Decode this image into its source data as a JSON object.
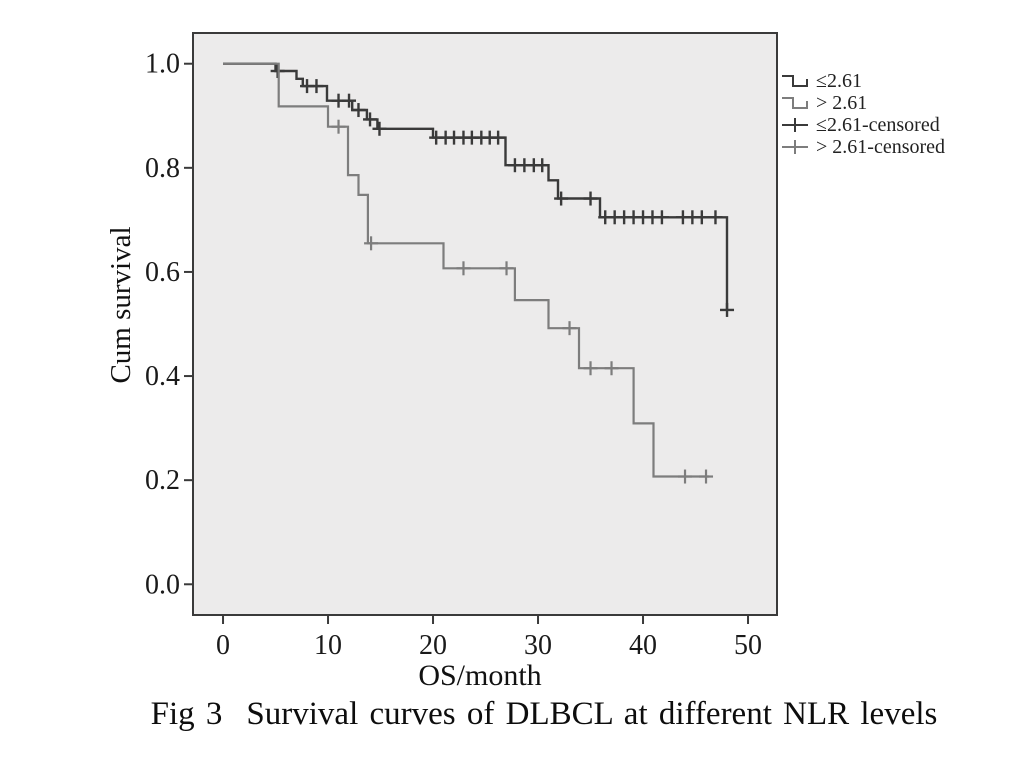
{
  "caption": {
    "prefix": "Fig 3",
    "text": "Survival curves of DLBCL at different NLR levels"
  },
  "legend": {
    "items": [
      {
        "label": "≤2.61",
        "symbol": "step-line-icon",
        "color": "#3a3a3a"
      },
      {
        "label": "> 2.61",
        "symbol": "step-line-icon",
        "color": "#7d7d7d"
      },
      {
        "label": "≤2.61-censored",
        "symbol": "censored-plus-icon",
        "color": "#3a3a3a"
      },
      {
        "label": "> 2.61-censored",
        "symbol": "censored-plus-icon",
        "color": "#7d7d7d"
      }
    ]
  },
  "chart_data": {
    "type": "line",
    "subtype": "kaplan_meier_step",
    "title": "Fig 3  Survival curves of DLBCL at different NLR levels",
    "xlabel": "OS/month",
    "ylabel": "Cum survival",
    "x_ticks": [
      0,
      10,
      20,
      30,
      40,
      50
    ],
    "y_ticks": [
      "0.0",
      "0.2",
      "0.4",
      "0.6",
      "0.8",
      "1.0"
    ],
    "xlim": [
      -2.86,
      52.76
    ],
    "ylim": [
      -0.059,
      1.059
    ],
    "plot_background": "#ECEBEB",
    "frame_color": "#3a3a3a",
    "legend_position": "outside-top-right",
    "grid": false,
    "series": [
      {
        "name": "≤2.61",
        "color": "#3a3a3a",
        "line_width": 2.4,
        "end_time": 48.0,
        "steps": [
          [
            0.0,
            1.0
          ],
          [
            5.0,
            0.986
          ],
          [
            7.0,
            0.971
          ],
          [
            7.6,
            0.957
          ],
          [
            9.9,
            0.929
          ],
          [
            12.3,
            0.911
          ],
          [
            13.7,
            0.893
          ],
          [
            14.7,
            0.875
          ],
          [
            20.0,
            0.858
          ],
          [
            26.9,
            0.805
          ],
          [
            31.0,
            0.776
          ],
          [
            31.9,
            0.741
          ],
          [
            35.9,
            0.705
          ],
          [
            48.0,
            0.527
          ]
        ],
        "censored": [
          [
            5.2,
            0.986
          ],
          [
            8.0,
            0.957
          ],
          [
            8.9,
            0.957
          ],
          [
            11.0,
            0.929
          ],
          [
            12.0,
            0.929
          ],
          [
            12.9,
            0.911
          ],
          [
            14.0,
            0.893
          ],
          [
            14.9,
            0.875
          ],
          [
            20.3,
            0.858
          ],
          [
            21.2,
            0.858
          ],
          [
            22.0,
            0.858
          ],
          [
            22.9,
            0.858
          ],
          [
            23.7,
            0.858
          ],
          [
            24.6,
            0.858
          ],
          [
            25.4,
            0.858
          ],
          [
            26.2,
            0.858
          ],
          [
            27.8,
            0.805
          ],
          [
            28.7,
            0.805
          ],
          [
            29.6,
            0.805
          ],
          [
            30.4,
            0.805
          ],
          [
            32.2,
            0.741
          ],
          [
            35.0,
            0.741
          ],
          [
            36.4,
            0.705
          ],
          [
            37.3,
            0.705
          ],
          [
            38.2,
            0.705
          ],
          [
            39.1,
            0.705
          ],
          [
            40.0,
            0.705
          ],
          [
            40.9,
            0.705
          ],
          [
            41.8,
            0.705
          ],
          [
            43.8,
            0.705
          ],
          [
            44.7,
            0.705
          ],
          [
            45.6,
            0.705
          ],
          [
            46.9,
            0.705
          ],
          [
            48.0,
            0.527
          ]
        ]
      },
      {
        "name": "> 2.61",
        "color": "#7d7d7d",
        "line_width": 2.2,
        "end_time": 46.3,
        "steps": [
          [
            0.0,
            1.0
          ],
          [
            5.3,
            0.918
          ],
          [
            10.0,
            0.879
          ],
          [
            11.9,
            0.786
          ],
          [
            12.9,
            0.748
          ],
          [
            13.8,
            0.655
          ],
          [
            21.0,
            0.607
          ],
          [
            27.8,
            0.546
          ],
          [
            31.0,
            0.492
          ],
          [
            33.9,
            0.415
          ],
          [
            39.1,
            0.309
          ],
          [
            41.0,
            0.207
          ]
        ],
        "censored": [
          [
            11.0,
            0.879
          ],
          [
            14.1,
            0.655
          ],
          [
            22.9,
            0.607
          ],
          [
            27.0,
            0.607
          ],
          [
            33.0,
            0.492
          ],
          [
            35.0,
            0.415
          ],
          [
            37.0,
            0.415
          ],
          [
            44.0,
            0.207
          ],
          [
            46.0,
            0.207
          ]
        ]
      }
    ]
  }
}
